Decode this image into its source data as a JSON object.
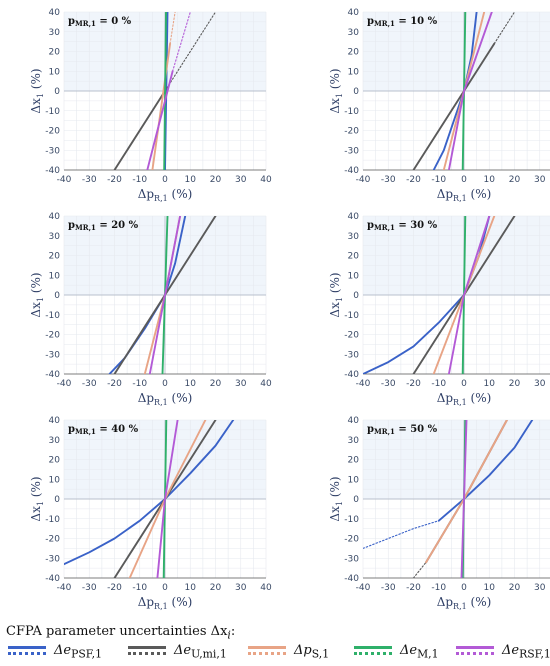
{
  "chart_data": {
    "type": "line",
    "x_axis": {
      "label": "Δp_R,1 (%)",
      "range": [
        -40,
        40
      ],
      "ticks": [
        -40,
        -30,
        -20,
        -10,
        0,
        10,
        20,
        30,
        40
      ]
    },
    "y_axis": {
      "label": "Δx_1 (%)",
      "range": [
        -40,
        40
      ],
      "ticks": [
        -40,
        -30,
        -20,
        -10,
        0,
        10,
        20,
        30,
        40
      ]
    },
    "grid": true,
    "colors": {
      "e_PSF": "#3a62c8",
      "e_U_mi": "#5a5a5a",
      "p_S": "#e8a486",
      "e_M": "#2fb06a",
      "e_RSF": "#b35ad6"
    },
    "panels": [
      {
        "title_bold": "p",
        "title_sub": "MR,1",
        "title_value": " = 0 %",
        "series": [
          {
            "key": "e_PSF",
            "style": "solid",
            "points": [
              [
                0,
                -40
              ],
              [
                1,
                40
              ]
            ]
          },
          {
            "key": "e_U_mi",
            "style": "solid",
            "points": [
              [
                -20,
                -40
              ],
              [
                0,
                0
              ]
            ]
          },
          {
            "key": "e_U_mi",
            "style": "dotted",
            "points": [
              [
                0,
                0
              ],
              [
                20,
                40
              ]
            ]
          },
          {
            "key": "p_S",
            "style": "solid",
            "points": [
              [
                -5,
                -40
              ],
              [
                2,
                24
              ]
            ]
          },
          {
            "key": "p_S",
            "style": "dotted",
            "points": [
              [
                2,
                24
              ],
              [
                4,
                40
              ]
            ]
          },
          {
            "key": "e_M",
            "style": "solid",
            "points": [
              [
                -0.3,
                -40
              ],
              [
                0.4,
                40
              ]
            ]
          },
          {
            "key": "e_RSF",
            "style": "solid",
            "points": [
              [
                -7,
                -40
              ],
              [
                3,
                10
              ]
            ]
          },
          {
            "key": "e_RSF",
            "style": "dotted",
            "points": [
              [
                3,
                10
              ],
              [
                10,
                40
              ]
            ]
          }
        ]
      },
      {
        "title_bold": "p",
        "title_sub": "MR,1",
        "title_value": " = 10 %",
        "series": [
          {
            "key": "e_PSF",
            "style": "solid",
            "points": [
              [
                -12,
                -40
              ],
              [
                -8,
                -30
              ],
              [
                -4,
                -15
              ],
              [
                0,
                0
              ],
              [
                3,
                18
              ],
              [
                5,
                40
              ]
            ]
          },
          {
            "key": "e_U_mi",
            "style": "solid",
            "points": [
              [
                -20,
                -40
              ],
              [
                0,
                0
              ],
              [
                12,
                24
              ]
            ]
          },
          {
            "key": "e_U_mi",
            "style": "dotted",
            "points": [
              [
                12,
                24
              ],
              [
                20,
                40
              ]
            ]
          },
          {
            "key": "p_S",
            "style": "solid",
            "points": [
              [
                -8,
                -40
              ],
              [
                0,
                0
              ],
              [
                8,
                40
              ]
            ]
          },
          {
            "key": "e_M",
            "style": "solid",
            "points": [
              [
                -0.5,
                -40
              ],
              [
                0.5,
                40
              ]
            ]
          },
          {
            "key": "e_RSF",
            "style": "solid",
            "points": [
              [
                -6,
                -40
              ],
              [
                0,
                0
              ],
              [
                11,
                40
              ]
            ]
          }
        ]
      },
      {
        "title_bold": "p",
        "title_sub": "MR,1",
        "title_value": " = 20 %",
        "series": [
          {
            "key": "e_PSF",
            "style": "solid",
            "points": [
              [
                -22,
                -40
              ],
              [
                -16,
                -32
              ],
              [
                -8,
                -17
              ],
              [
                0,
                0
              ],
              [
                4,
                16
              ],
              [
                8,
                40
              ]
            ]
          },
          {
            "key": "e_U_mi",
            "style": "solid",
            "points": [
              [
                -20,
                -40
              ],
              [
                0,
                0
              ],
              [
                20,
                40
              ]
            ]
          },
          {
            "key": "p_S",
            "style": "solid",
            "points": [
              [
                -8,
                -40
              ],
              [
                0,
                0
              ],
              [
                6,
                40
              ]
            ]
          },
          {
            "key": "e_M",
            "style": "solid",
            "points": [
              [
                -1,
                -40
              ],
              [
                1,
                40
              ]
            ]
          },
          {
            "key": "e_RSF",
            "style": "solid",
            "points": [
              [
                -6,
                -40
              ],
              [
                0,
                0
              ],
              [
                6,
                40
              ]
            ]
          }
        ]
      },
      {
        "title_bold": "p",
        "title_sub": "MR,1",
        "title_value": " = 30 %",
        "series": [
          {
            "key": "e_PSF",
            "style": "solid",
            "points": [
              [
                -40,
                -40
              ],
              [
                -30,
                -34
              ],
              [
                -20,
                -26
              ],
              [
                -10,
                -14
              ],
              [
                0,
                0
              ],
              [
                6,
                20
              ],
              [
                10,
                40
              ]
            ]
          },
          {
            "key": "e_U_mi",
            "style": "solid",
            "points": [
              [
                -20,
                -40
              ],
              [
                0,
                0
              ],
              [
                20,
                40
              ]
            ]
          },
          {
            "key": "p_S",
            "style": "solid",
            "points": [
              [
                -12,
                -40
              ],
              [
                0,
                0
              ],
              [
                12,
                40
              ]
            ]
          },
          {
            "key": "e_M",
            "style": "solid",
            "points": [
              [
                -0.5,
                -40
              ],
              [
                0.5,
                40
              ]
            ]
          },
          {
            "key": "e_RSF",
            "style": "solid",
            "points": [
              [
                -6,
                -40
              ],
              [
                0,
                0
              ],
              [
                10,
                40
              ]
            ]
          }
        ]
      },
      {
        "title_bold": "p",
        "title_sub": "MR,1",
        "title_value": " = 40 %",
        "series": [
          {
            "key": "e_PSF",
            "style": "solid",
            "points": [
              [
                -40,
                -33
              ],
              [
                -30,
                -27
              ],
              [
                -20,
                -20
              ],
              [
                -10,
                -11
              ],
              [
                0,
                0
              ],
              [
                10,
                13
              ],
              [
                20,
                27
              ],
              [
                27,
                40
              ]
            ]
          },
          {
            "key": "e_U_mi",
            "style": "solid",
            "points": [
              [
                -20,
                -40
              ],
              [
                0,
                0
              ],
              [
                20,
                40
              ]
            ]
          },
          {
            "key": "p_S",
            "style": "solid",
            "points": [
              [
                -14,
                -40
              ],
              [
                0,
                0
              ],
              [
                16,
                40
              ]
            ]
          },
          {
            "key": "e_M",
            "style": "solid",
            "points": [
              [
                -0.5,
                -40
              ],
              [
                0.5,
                40
              ]
            ]
          },
          {
            "key": "e_RSF",
            "style": "solid",
            "points": [
              [
                -3,
                -40
              ],
              [
                0,
                0
              ],
              [
                5,
                40
              ]
            ]
          }
        ]
      },
      {
        "title_bold": "p",
        "title_sub": "MR,1",
        "title_value": " = 50 %",
        "series": [
          {
            "key": "e_PSF",
            "style": "dotted",
            "points": [
              [
                -40,
                -25
              ],
              [
                -30,
                -20
              ],
              [
                -20,
                -15
              ],
              [
                -10,
                -11
              ]
            ]
          },
          {
            "key": "e_PSF",
            "style": "solid",
            "points": [
              [
                -10,
                -11
              ],
              [
                0,
                0
              ],
              [
                10,
                12
              ],
              [
                20,
                26
              ],
              [
                27,
                40
              ]
            ]
          },
          {
            "key": "e_U_mi",
            "style": "dotted",
            "points": [
              [
                -20,
                -40
              ],
              [
                -15,
                -32
              ]
            ]
          },
          {
            "key": "e_U_mi",
            "style": "solid",
            "points": [
              [
                -15,
                -32
              ],
              [
                0,
                0
              ],
              [
                17,
                40
              ]
            ]
          },
          {
            "key": "p_S",
            "style": "solid",
            "points": [
              [
                -15,
                -32
              ],
              [
                0,
                0
              ],
              [
                17,
                40
              ]
            ]
          },
          {
            "key": "e_M",
            "style": "solid",
            "points": [
              [
                -0.5,
                -40
              ],
              [
                0.5,
                40
              ]
            ]
          },
          {
            "key": "e_RSF",
            "style": "solid",
            "points": [
              [
                -1,
                -40
              ],
              [
                0,
                0
              ],
              [
                1,
                40
              ]
            ]
          }
        ]
      }
    ]
  },
  "legend": {
    "title": "CFPA parameter uncertainties  Δx",
    "title_sub": "i",
    "title_suffix": ":",
    "items": [
      {
        "key": "e_PSF",
        "label": "Δe",
        "sub": "PSF,1"
      },
      {
        "key": "e_U_mi",
        "label": "Δe",
        "sub": "U,mi,1"
      },
      {
        "key": "p_S",
        "label": "Δp",
        "sub": "S,1"
      },
      {
        "key": "e_M",
        "label": "Δe",
        "sub": "M,1"
      },
      {
        "key": "e_RSF",
        "label": "Δe",
        "sub": "RSF,1"
      }
    ]
  }
}
